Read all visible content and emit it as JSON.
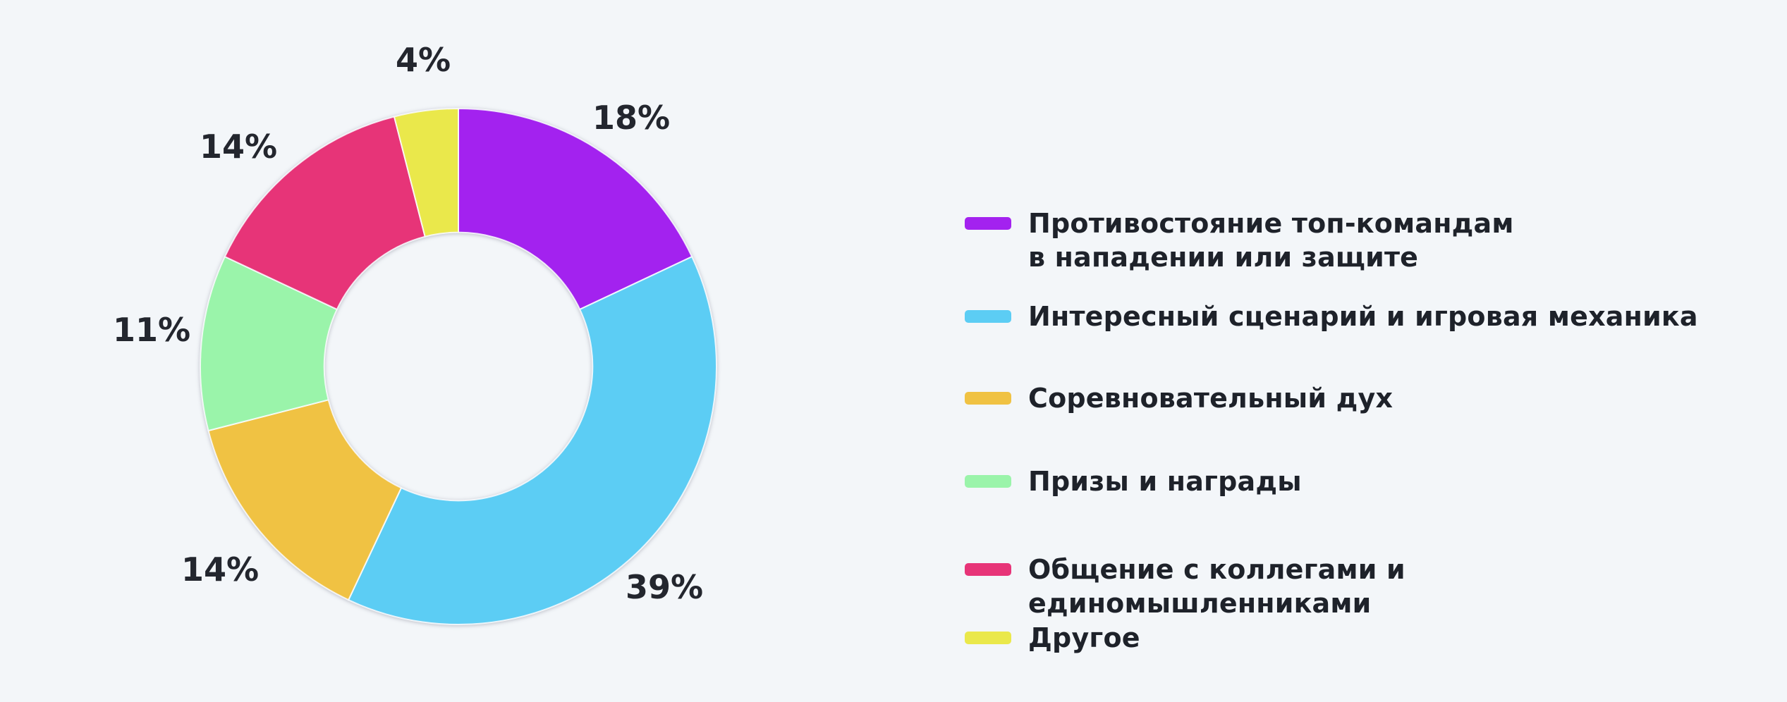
{
  "background": "#F3F6F9",
  "text_color": "#23262E",
  "chart_data": {
    "type": "pie",
    "subtype": "donut",
    "title": "",
    "unit": "%",
    "categories": [
      "Противостояние топ-командам в нападении или защите",
      "Интересный сценарий и игровая механика",
      "Соревновательный дух",
      "Призы и награды",
      "Общение с коллегами и единомышленниками",
      "Другое"
    ],
    "values": [
      18,
      39,
      14,
      11,
      14,
      4
    ],
    "labels": [
      "18%",
      "39%",
      "14%",
      "11%",
      "14%",
      "4%"
    ],
    "colors": [
      "#A322EF",
      "#5CCDF4",
      "#F0C243",
      "#9AF4AA",
      "#E73478",
      "#EAE84B"
    ],
    "start_angle_deg": 0,
    "direction": "clockwise",
    "inner_radius_ratio": 0.52,
    "grid": false,
    "legend_position": "right"
  }
}
